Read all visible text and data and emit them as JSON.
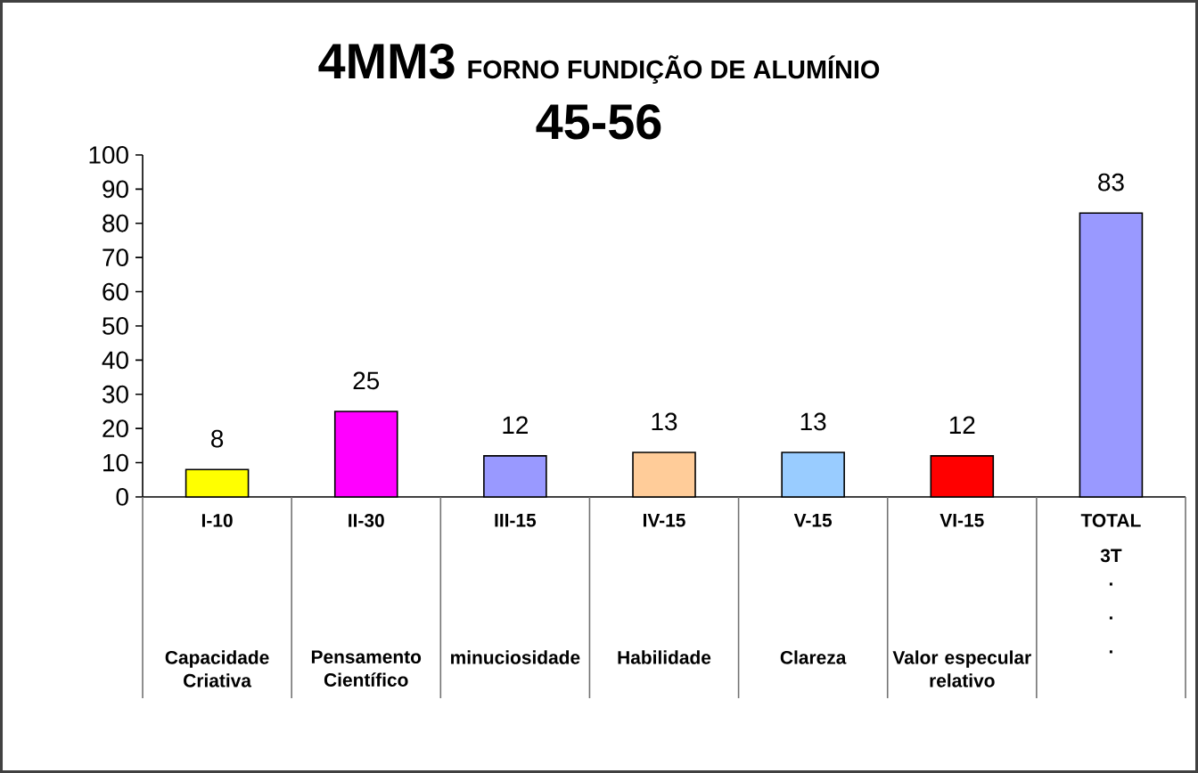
{
  "chart_data": {
    "type": "bar",
    "title": "4MM3",
    "subtitle": "FORNO FUNDIÇÃO DE ALUMÍNIO",
    "annotations": [
      "45-56",
      "Capacidade Criativa",
      "Pensamento Científico",
      "minuciosidade",
      "Habilidade",
      "Clareza",
      "Valor especular relativo",
      "3T",
      ".",
      ".",
      "."
    ],
    "categories": [
      "I-10",
      "II-30",
      "III-15",
      "IV-15",
      "V-15",
      "VI-15",
      "TOTAL"
    ],
    "values": [
      8,
      25,
      12,
      13,
      13,
      12,
      83
    ],
    "colors": [
      "#ffff00",
      "#ff00ff",
      "#9999ff",
      "#ffcc99",
      "#99ccff",
      "#ff0000",
      "#9999ff"
    ],
    "ylim": [
      0,
      100
    ],
    "yticks": [
      0,
      10,
      20,
      30,
      40,
      50,
      60,
      70,
      80,
      90,
      100
    ],
    "data_labels": true
  }
}
